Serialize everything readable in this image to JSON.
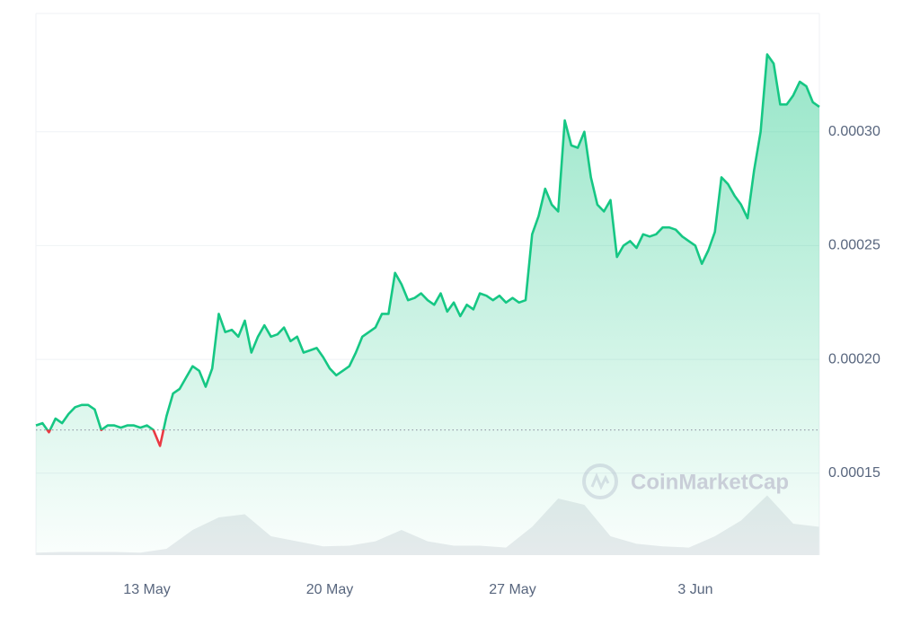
{
  "chart_data": [
    {
      "type": "line",
      "categories": [
        null,
        null,
        null,
        null,
        null,
        null,
        null,
        null,
        null,
        null,
        null,
        null,
        null,
        null,
        null,
        null,
        null,
        "13 May",
        null,
        null,
        null,
        null,
        null,
        null,
        null,
        null,
        null,
        null,
        null,
        null,
        null,
        null,
        null,
        null,
        null,
        null,
        null,
        null,
        null,
        null,
        null,
        null,
        null,
        null,
        null,
        "20 May",
        null,
        null,
        null,
        null,
        null,
        null,
        null,
        null,
        null,
        null,
        null,
        null,
        null,
        null,
        null,
        null,
        null,
        null,
        null,
        null,
        null,
        null,
        null,
        null,
        null,
        null,
        null,
        "27 May",
        null,
        null,
        null,
        null,
        null,
        null,
        null,
        null,
        null,
        null,
        null,
        null,
        null,
        null,
        null,
        null,
        null,
        null,
        null,
        null,
        null,
        null,
        null,
        null,
        null,
        null,
        null,
        "3 Jun",
        null,
        null,
        null,
        null,
        null,
        null,
        null,
        null,
        null,
        null,
        null,
        null,
        null,
        null,
        null,
        null,
        null,
        null,
        null
      ],
      "values": [
        0.000171,
        0.000172,
        0.000168,
        0.000174,
        0.000172,
        0.000176,
        0.000179,
        0.00018,
        0.00018,
        0.000178,
        0.000169,
        0.000171,
        0.000171,
        0.00017,
        0.000171,
        0.000171,
        0.00017,
        0.000171,
        0.000169,
        0.000162,
        0.000175,
        0.000185,
        0.000187,
        0.000192,
        0.000197,
        0.000195,
        0.000188,
        0.000196,
        0.00022,
        0.000212,
        0.000213,
        0.00021,
        0.000217,
        0.000203,
        0.00021,
        0.000215,
        0.00021,
        0.000211,
        0.000214,
        0.000208,
        0.00021,
        0.000203,
        0.000204,
        0.000205,
        0.000201,
        0.000196,
        0.000193,
        0.000195,
        0.000197,
        0.000203,
        0.00021,
        0.000212,
        0.000214,
        0.00022,
        0.00022,
        0.000238,
        0.000233,
        0.000226,
        0.000227,
        0.000229,
        0.000226,
        0.000224,
        0.000229,
        0.000221,
        0.000225,
        0.000219,
        0.000224,
        0.000222,
        0.000229,
        0.000228,
        0.000226,
        0.000228,
        0.000225,
        0.000227,
        0.000225,
        0.000226,
        0.000255,
        0.000263,
        0.000275,
        0.000268,
        0.000265,
        0.000305,
        0.000294,
        0.000293,
        0.0003,
        0.00028,
        0.000268,
        0.000265,
        0.00027,
        0.000245,
        0.00025,
        0.000252,
        0.000249,
        0.000255,
        0.000254,
        0.000255,
        0.000258,
        0.000258,
        0.000257,
        0.000254,
        0.000252,
        0.00025,
        0.000242,
        0.000248,
        0.000256,
        0.00028,
        0.000277,
        0.000272,
        0.000268,
        0.000262,
        0.000283,
        0.0003,
        0.000334,
        0.00033,
        0.000312,
        0.000312,
        0.000316,
        0.000322,
        0.00032,
        0.000313,
        0.000311
      ],
      "color": "#16c784",
      "below_color": "#ea3943",
      "baseline": 0.000169,
      "ylim": [
        0.000114,
        0.000352
      ],
      "yticks": [
        {
          "value": 0.00015,
          "label": "0.00015"
        },
        {
          "value": 0.0002,
          "label": "0.00020"
        },
        {
          "value": 0.00025,
          "label": "0.00025"
        },
        {
          "value": 0.0003,
          "label": "0.00030"
        }
      ],
      "grid": true,
      "watermark": "CoinMarketCap"
    },
    {
      "type": "area",
      "values": [
        4,
        5,
        5,
        5,
        4,
        10,
        40,
        60,
        65,
        30,
        22,
        14,
        15,
        22,
        40,
        22,
        15,
        15,
        12,
        45,
        90,
        80,
        30,
        18,
        14,
        12,
        30,
        55,
        95,
        50,
        45
      ],
      "color": "#e9ebee",
      "ylim": [
        0,
        100
      ]
    }
  ]
}
